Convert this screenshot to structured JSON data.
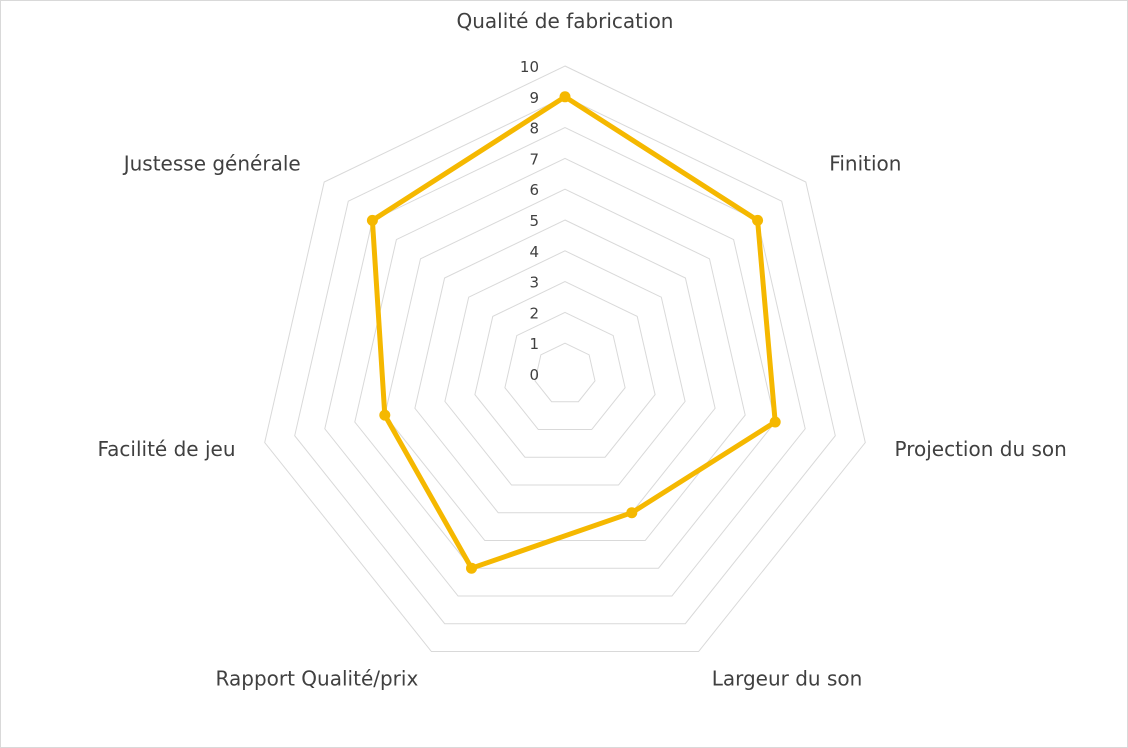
{
  "chart_data": {
    "type": "radar",
    "categories": [
      "Qualité de fabrication",
      "Finition",
      "Projection du son",
      "Largeur du son",
      "Rapport Qualité/prix",
      "Facilité de jeu",
      "Justesse générale"
    ],
    "series": [
      {
        "values": [
          9,
          8,
          7,
          5,
          7,
          6,
          8
        ]
      }
    ],
    "rlim": [
      0,
      10
    ],
    "ticks": [
      "0",
      "1",
      "2",
      "3",
      "4",
      "5",
      "6",
      "7",
      "8",
      "9",
      "10"
    ],
    "grid": true,
    "colors": {
      "series": "#f5b800",
      "grid": "#d9d9d9",
      "text": "#404040"
    }
  }
}
